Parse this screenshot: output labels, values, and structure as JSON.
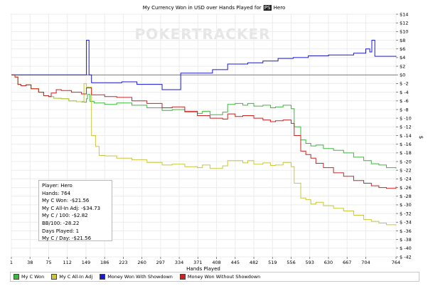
{
  "chart_data": {
    "type": "line",
    "title_prefix": "My Currency Won in USD over Hands Played for",
    "title_badge": "PS",
    "title_suffix": "Hero",
    "xlabel": "Hands Played",
    "ylabel": "$",
    "xlim": [
      1,
      764
    ],
    "ylim": [
      -42,
      14
    ],
    "x_ticks": [
      1,
      38,
      75,
      112,
      149,
      186,
      223,
      260,
      297,
      334,
      371,
      408,
      445,
      482,
      519,
      556,
      593,
      630,
      667,
      704,
      764
    ],
    "y_ticks": [
      14,
      12,
      10,
      8,
      6,
      4,
      2,
      0,
      -2,
      -4,
      -6,
      -8,
      -10,
      -12,
      -14,
      -16,
      -18,
      -20,
      -22,
      -24,
      -26,
      -28,
      -30,
      -32,
      -34,
      -36,
      -38,
      -40,
      -42
    ],
    "y_tick_labels": [
      "$14",
      "$12",
      "$10",
      "$8",
      "$6",
      "$4",
      "$2",
      "$0",
      "$ -2",
      "$ -4",
      "$ -6",
      "$ -8",
      "$ -10",
      "$ -12",
      "$ -14",
      "$ -16",
      "$ -18",
      "$ -20",
      "$ -22",
      "$ -24",
      "$ -26",
      "$ -28",
      "$ -30",
      "$ -32",
      "$ -34",
      "$ -36",
      "$ -38",
      "$ -40",
      "$ -42"
    ],
    "watermark": "POKERTRACKER",
    "series": [
      {
        "name": "My C Won",
        "color": "#3cb83c",
        "points": [
          [
            1,
            0
          ],
          [
            8,
            -0.5
          ],
          [
            14,
            -2.2
          ],
          [
            20,
            -2.5
          ],
          [
            30,
            -2.3
          ],
          [
            40,
            -3.2
          ],
          [
            55,
            -4.0
          ],
          [
            65,
            -4.8
          ],
          [
            75,
            -5.0
          ],
          [
            85,
            -5.4
          ],
          [
            100,
            -5.5
          ],
          [
            115,
            -6.0
          ],
          [
            130,
            -6.2
          ],
          [
            145,
            -6.3
          ],
          [
            150,
            -5.5
          ],
          [
            152,
            -4.5
          ],
          [
            157,
            -6.1
          ],
          [
            165,
            -6.5
          ],
          [
            186,
            -6.8
          ],
          [
            210,
            -6.5
          ],
          [
            240,
            -7.0
          ],
          [
            270,
            -7.6
          ],
          [
            300,
            -8.2
          ],
          [
            320,
            -8.0
          ],
          [
            345,
            -8.6
          ],
          [
            370,
            -8.9
          ],
          [
            380,
            -8.4
          ],
          [
            395,
            -9.2
          ],
          [
            420,
            -8.6
          ],
          [
            430,
            -6.8
          ],
          [
            445,
            -6.6
          ],
          [
            460,
            -7.0
          ],
          [
            470,
            -6.6
          ],
          [
            482,
            -7.2
          ],
          [
            500,
            -7.0
          ],
          [
            515,
            -7.6
          ],
          [
            525,
            -7.4
          ],
          [
            540,
            -7.0
          ],
          [
            556,
            -7.8
          ],
          [
            562,
            -12.0
          ],
          [
            575,
            -15.0
          ],
          [
            585,
            -15.8
          ],
          [
            595,
            -16.4
          ],
          [
            605,
            -16.2
          ],
          [
            620,
            -17.0
          ],
          [
            640,
            -17.4
          ],
          [
            660,
            -18.0
          ],
          [
            680,
            -19.0
          ],
          [
            700,
            -19.8
          ],
          [
            715,
            -20.5
          ],
          [
            730,
            -20.8
          ],
          [
            745,
            -21.4
          ],
          [
            764,
            -21.6
          ]
        ]
      },
      {
        "name": "My C All-In Adj",
        "color": "#c8c83a",
        "points": [
          [
            1,
            0
          ],
          [
            8,
            -0.5
          ],
          [
            14,
            -2.2
          ],
          [
            20,
            -2.5
          ],
          [
            30,
            -2.3
          ],
          [
            40,
            -3.2
          ],
          [
            55,
            -4.0
          ],
          [
            65,
            -4.8
          ],
          [
            75,
            -5.0
          ],
          [
            85,
            -5.4
          ],
          [
            100,
            -5.5
          ],
          [
            115,
            -6.0
          ],
          [
            130,
            -6.2
          ],
          [
            140,
            -6.3
          ],
          [
            145,
            -2.0
          ],
          [
            150,
            -2.8
          ],
          [
            160,
            -14.0
          ],
          [
            168,
            -16.5
          ],
          [
            175,
            -18.6
          ],
          [
            186,
            -18.7
          ],
          [
            210,
            -19.2
          ],
          [
            240,
            -19.6
          ],
          [
            270,
            -20.2
          ],
          [
            300,
            -20.8
          ],
          [
            320,
            -20.6
          ],
          [
            345,
            -21.2
          ],
          [
            370,
            -21.4
          ],
          [
            380,
            -20.8
          ],
          [
            395,
            -21.6
          ],
          [
            420,
            -21.0
          ],
          [
            430,
            -19.8
          ],
          [
            445,
            -19.8
          ],
          [
            460,
            -20.3
          ],
          [
            470,
            -19.8
          ],
          [
            482,
            -20.6
          ],
          [
            500,
            -20.3
          ],
          [
            515,
            -20.9
          ],
          [
            525,
            -20.8
          ],
          [
            540,
            -20.2
          ],
          [
            556,
            -21.2
          ],
          [
            562,
            -25.0
          ],
          [
            575,
            -28.4
          ],
          [
            585,
            -28.8
          ],
          [
            595,
            -29.8
          ],
          [
            605,
            -29.4
          ],
          [
            620,
            -30.2
          ],
          [
            640,
            -30.8
          ],
          [
            660,
            -31.4
          ],
          [
            680,
            -32.4
          ],
          [
            700,
            -33.4
          ],
          [
            715,
            -33.8
          ],
          [
            730,
            -34.2
          ],
          [
            745,
            -34.6
          ],
          [
            764,
            -34.7
          ]
        ]
      },
      {
        "name": "Money Won With Showdown",
        "color": "#1a1acd",
        "points": [
          [
            1,
            0
          ],
          [
            145,
            0
          ],
          [
            150,
            8.0
          ],
          [
            155,
            0
          ],
          [
            160,
            -1.8
          ],
          [
            186,
            -1.8
          ],
          [
            220,
            -1.6
          ],
          [
            250,
            -2.2
          ],
          [
            297,
            -2.2
          ],
          [
            300,
            -3.4
          ],
          [
            334,
            -3.4
          ],
          [
            337,
            0.4
          ],
          [
            380,
            0.4
          ],
          [
            400,
            1.2
          ],
          [
            430,
            2.5
          ],
          [
            470,
            2.8
          ],
          [
            500,
            3.2
          ],
          [
            530,
            3.8
          ],
          [
            560,
            4.0
          ],
          [
            590,
            4.4
          ],
          [
            630,
            4.6
          ],
          [
            680,
            5.0
          ],
          [
            704,
            6.0
          ],
          [
            712,
            5.3
          ],
          [
            716,
            8.0
          ],
          [
            722,
            4.3
          ],
          [
            764,
            4.2
          ]
        ]
      },
      {
        "name": "Money Won Without Showdown",
        "color": "#cc2222",
        "points": [
          [
            1,
            0
          ],
          [
            8,
            -0.5
          ],
          [
            14,
            -2.2
          ],
          [
            20,
            -2.5
          ],
          [
            30,
            -2.3
          ],
          [
            40,
            -3.2
          ],
          [
            55,
            -4.0
          ],
          [
            65,
            -4.8
          ],
          [
            75,
            -5.0
          ],
          [
            80,
            -4.2
          ],
          [
            90,
            -3.4
          ],
          [
            100,
            -3.6
          ],
          [
            120,
            -4.0
          ],
          [
            140,
            -4.4
          ],
          [
            150,
            -3.0
          ],
          [
            160,
            -4.6
          ],
          [
            186,
            -5.0
          ],
          [
            210,
            -5.2
          ],
          [
            240,
            -6.0
          ],
          [
            270,
            -6.6
          ],
          [
            300,
            -7.6
          ],
          [
            320,
            -7.4
          ],
          [
            345,
            -8.4
          ],
          [
            370,
            -9.4
          ],
          [
            395,
            -10.0
          ],
          [
            420,
            -10.2
          ],
          [
            430,
            -9.0
          ],
          [
            445,
            -9.6
          ],
          [
            460,
            -9.4
          ],
          [
            482,
            -10.0
          ],
          [
            500,
            -10.4
          ],
          [
            515,
            -10.8
          ],
          [
            525,
            -10.6
          ],
          [
            540,
            -10.4
          ],
          [
            556,
            -11.2
          ],
          [
            562,
            -14.0
          ],
          [
            575,
            -17.6
          ],
          [
            585,
            -18.4
          ],
          [
            595,
            -19.2
          ],
          [
            605,
            -20.4
          ],
          [
            620,
            -21.4
          ],
          [
            640,
            -22.6
          ],
          [
            660,
            -23.4
          ],
          [
            680,
            -24.4
          ],
          [
            700,
            -25.0
          ],
          [
            715,
            -25.6
          ],
          [
            730,
            -26.0
          ],
          [
            745,
            -26.2
          ],
          [
            764,
            -25.8
          ]
        ]
      }
    ]
  },
  "stats": [
    "Player: Hero",
    "Hands: 764",
    "My C Won: -$21.56",
    "My C All-In Adj: -$34.73",
    "My C / 100: -$2.82",
    "BB/100: -28.22",
    "Days Played: 1",
    "My C / Day: -$21.56"
  ],
  "legend": [
    {
      "label": "My C Won",
      "color": "#3cb83c"
    },
    {
      "label": "My C All-In Adj",
      "color": "#c8c83a"
    },
    {
      "label": "Money Won With Showdown",
      "color": "#1a1acd"
    },
    {
      "label": "Money Won Without Showdown",
      "color": "#cc2222"
    }
  ]
}
